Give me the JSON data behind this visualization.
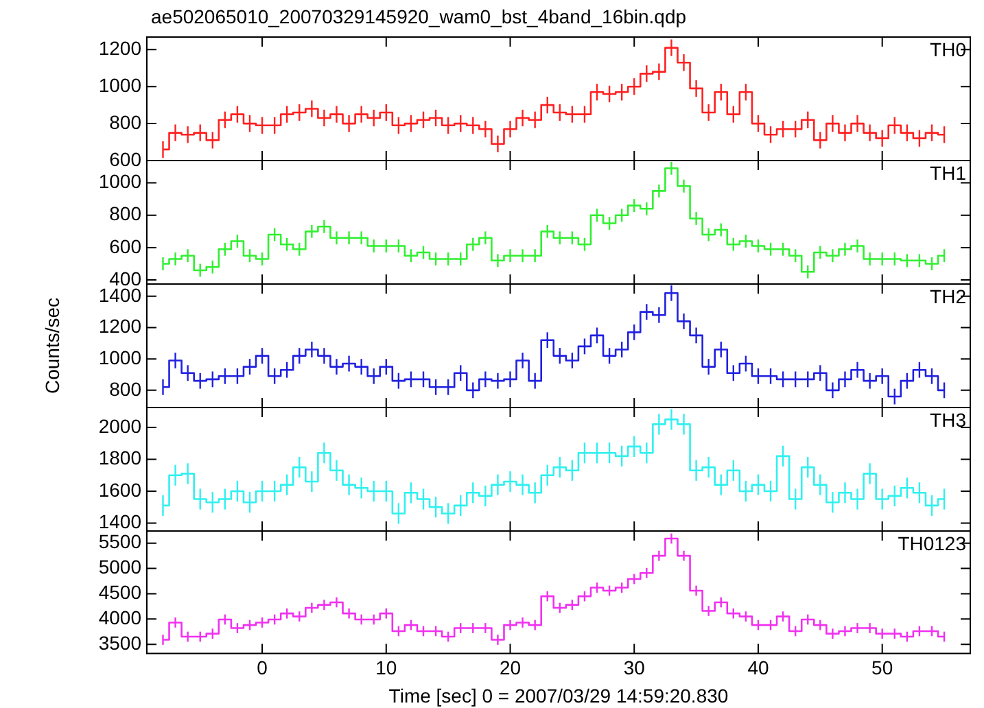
{
  "chart_data": [
    {
      "type": "step",
      "title": "ae502065010_20070329145920_wam0_bst_4band_16bin.qdp",
      "marker": "none",
      "legend": false,
      "tick_labels": "y",
      "xlim": [
        -9.3,
        57.1
      ],
      "xticks": [
        0,
        10,
        20,
        30,
        40,
        50
      ],
      "ylim": [
        600,
        1268
      ],
      "yticks": [
        600,
        800,
        1000,
        1200
      ],
      "x": [
        -8,
        -7,
        -6,
        -5,
        -4,
        -3,
        -2,
        -1,
        0,
        1,
        2,
        3,
        4,
        5,
        6,
        7,
        8,
        9,
        10,
        11,
        12,
        13,
        14,
        15,
        16,
        17,
        18,
        19,
        20,
        21,
        22,
        23,
        24,
        25,
        26,
        27,
        28,
        29,
        30,
        31,
        32,
        33,
        34,
        35,
        36,
        37,
        38,
        39,
        40,
        41,
        42,
        43,
        44,
        45,
        46,
        47,
        48,
        49,
        50,
        51,
        52,
        53,
        54,
        55
      ],
      "series": [
        {
          "name": "TH0",
          "color": "#ff2020",
          "values": [
            660,
            750,
            740,
            750,
            710,
            820,
            850,
            800,
            790,
            790,
            850,
            860,
            880,
            830,
            850,
            800,
            850,
            830,
            860,
            790,
            800,
            820,
            830,
            790,
            800,
            790,
            770,
            690,
            770,
            830,
            820,
            900,
            860,
            850,
            850,
            970,
            960,
            970,
            1000,
            1070,
            1080,
            1210,
            1130,
            990,
            860,
            970,
            850,
            970,
            800,
            740,
            770,
            770,
            820,
            710,
            800,
            750,
            800,
            750,
            720,
            790,
            750,
            720,
            750,
            740
          ],
          "errors": [
            45,
            45,
            45,
            45,
            45,
            45,
            45,
            45,
            45,
            45,
            45,
            45,
            45,
            45,
            45,
            45,
            45,
            45,
            45,
            45,
            45,
            45,
            45,
            45,
            45,
            45,
            45,
            45,
            45,
            45,
            45,
            45,
            45,
            45,
            45,
            45,
            45,
            45,
            45,
            45,
            45,
            45,
            45,
            45,
            45,
            45,
            45,
            45,
            45,
            45,
            45,
            45,
            45,
            45,
            45,
            45,
            45,
            45,
            45,
            45,
            45,
            45,
            45,
            45
          ]
        }
      ]
    },
    {
      "type": "step",
      "marker": "none",
      "legend": false,
      "tick_labels": "y",
      "xlim": [
        -9.3,
        57.1
      ],
      "xticks": [
        0,
        10,
        20,
        30,
        40,
        50
      ],
      "ylim": [
        375,
        1138
      ],
      "yticks": [
        400,
        600,
        800,
        1000
      ],
      "x": [
        -8,
        -7,
        -6,
        -5,
        -4,
        -3,
        -2,
        -1,
        0,
        1,
        2,
        3,
        4,
        5,
        6,
        7,
        8,
        9,
        10,
        11,
        12,
        13,
        14,
        15,
        16,
        17,
        18,
        19,
        20,
        21,
        22,
        23,
        24,
        25,
        26,
        27,
        28,
        29,
        30,
        31,
        32,
        33,
        34,
        35,
        36,
        37,
        38,
        39,
        40,
        41,
        42,
        43,
        44,
        45,
        46,
        47,
        48,
        49,
        50,
        51,
        52,
        53,
        54,
        55
      ],
      "series": [
        {
          "name": "TH1",
          "color": "#30f030",
          "values": [
            500,
            530,
            550,
            460,
            480,
            590,
            640,
            550,
            530,
            680,
            620,
            590,
            700,
            730,
            660,
            660,
            660,
            610,
            610,
            610,
            550,
            570,
            530,
            530,
            530,
            620,
            660,
            520,
            550,
            550,
            550,
            700,
            660,
            660,
            620,
            800,
            750,
            800,
            860,
            840,
            950,
            1090,
            980,
            780,
            680,
            710,
            620,
            640,
            610,
            590,
            590,
            550,
            450,
            570,
            550,
            590,
            610,
            530,
            530,
            530,
            520,
            520,
            500,
            550
          ],
          "errors": [
            40,
            40,
            40,
            40,
            40,
            40,
            40,
            40,
            40,
            40,
            40,
            40,
            40,
            40,
            40,
            40,
            40,
            40,
            40,
            40,
            40,
            40,
            40,
            40,
            40,
            40,
            40,
            40,
            40,
            40,
            40,
            40,
            40,
            40,
            40,
            40,
            40,
            40,
            40,
            40,
            40,
            40,
            40,
            40,
            40,
            40,
            40,
            40,
            40,
            40,
            40,
            40,
            40,
            40,
            40,
            40,
            40,
            40,
            40,
            40,
            40,
            40,
            40,
            40
          ]
        }
      ]
    },
    {
      "type": "step",
      "ylabel": "Counts/sec",
      "marker": "none",
      "legend": false,
      "tick_labels": "y",
      "xlim": [
        -9.3,
        57.1
      ],
      "xticks": [
        0,
        10,
        20,
        30,
        40,
        50
      ],
      "ylim": [
        690,
        1478
      ],
      "yticks": [
        800,
        1000,
        1200,
        1400
      ],
      "x": [
        -8,
        -7,
        -6,
        -5,
        -4,
        -3,
        -2,
        -1,
        0,
        1,
        2,
        3,
        4,
        5,
        6,
        7,
        8,
        9,
        10,
        11,
        12,
        13,
        14,
        15,
        16,
        17,
        18,
        19,
        20,
        21,
        22,
        23,
        24,
        25,
        26,
        27,
        28,
        29,
        30,
        31,
        32,
        33,
        34,
        35,
        36,
        37,
        38,
        39,
        40,
        41,
        42,
        43,
        44,
        45,
        46,
        47,
        48,
        49,
        50,
        51,
        52,
        53,
        54,
        55
      ],
      "series": [
        {
          "name": "TH2",
          "color": "#2020e0",
          "values": [
            820,
            990,
            910,
            860,
            870,
            890,
            890,
            950,
            1020,
            890,
            930,
            1020,
            1060,
            1020,
            950,
            970,
            950,
            890,
            950,
            860,
            870,
            870,
            820,
            820,
            910,
            800,
            870,
            860,
            870,
            990,
            860,
            1120,
            1020,
            990,
            1080,
            1150,
            1020,
            1060,
            1170,
            1300,
            1280,
            1420,
            1240,
            1150,
            950,
            1060,
            910,
            970,
            890,
            890,
            870,
            870,
            870,
            910,
            800,
            870,
            930,
            860,
            890,
            760,
            860,
            930,
            890,
            800
          ],
          "errors": [
            50,
            50,
            50,
            50,
            50,
            50,
            50,
            50,
            50,
            50,
            50,
            50,
            50,
            50,
            50,
            50,
            50,
            50,
            50,
            50,
            50,
            50,
            50,
            50,
            50,
            50,
            50,
            50,
            50,
            50,
            50,
            50,
            50,
            50,
            50,
            50,
            50,
            50,
            50,
            50,
            50,
            50,
            50,
            50,
            50,
            50,
            50,
            50,
            50,
            50,
            50,
            50,
            50,
            50,
            50,
            50,
            50,
            50,
            50,
            50,
            50,
            50,
            50,
            50
          ]
        }
      ]
    },
    {
      "type": "step",
      "marker": "none",
      "legend": false,
      "tick_labels": "y",
      "xlim": [
        -9.3,
        57.1
      ],
      "xticks": [
        0,
        10,
        20,
        30,
        40,
        50
      ],
      "ylim": [
        1350,
        2125
      ],
      "yticks": [
        1400,
        1600,
        1800,
        2000
      ],
      "x": [
        -8,
        -7,
        -6,
        -5,
        -4,
        -3,
        -2,
        -1,
        0,
        1,
        2,
        3,
        4,
        5,
        6,
        7,
        8,
        9,
        10,
        11,
        12,
        13,
        14,
        15,
        16,
        17,
        18,
        19,
        20,
        21,
        22,
        23,
        24,
        25,
        26,
        27,
        28,
        29,
        30,
        31,
        32,
        33,
        34,
        35,
        36,
        37,
        38,
        39,
        40,
        41,
        42,
        43,
        44,
        45,
        46,
        47,
        48,
        49,
        50,
        51,
        52,
        53,
        54,
        55
      ],
      "series": [
        {
          "name": "TH3",
          "color": "#30f0f0",
          "values": [
            1510,
            1700,
            1710,
            1550,
            1530,
            1550,
            1600,
            1530,
            1600,
            1600,
            1640,
            1750,
            1660,
            1840,
            1730,
            1640,
            1620,
            1600,
            1600,
            1460,
            1590,
            1550,
            1500,
            1460,
            1510,
            1590,
            1570,
            1640,
            1660,
            1640,
            1590,
            1700,
            1750,
            1730,
            1840,
            1840,
            1840,
            1820,
            1880,
            1840,
            2020,
            2050,
            2020,
            1730,
            1750,
            1640,
            1730,
            1600,
            1640,
            1600,
            1820,
            1550,
            1750,
            1640,
            1530,
            1590,
            1550,
            1710,
            1550,
            1570,
            1620,
            1590,
            1510,
            1550
          ],
          "errors": [
            65,
            65,
            65,
            65,
            65,
            65,
            65,
            65,
            65,
            65,
            65,
            65,
            65,
            65,
            65,
            65,
            65,
            65,
            65,
            65,
            65,
            65,
            65,
            65,
            65,
            65,
            65,
            65,
            65,
            65,
            65,
            65,
            65,
            65,
            65,
            65,
            65,
            65,
            65,
            65,
            65,
            65,
            65,
            65,
            65,
            65,
            65,
            65,
            65,
            65,
            65,
            65,
            65,
            65,
            65,
            65,
            65,
            65,
            65,
            65,
            65,
            65,
            65,
            65
          ]
        }
      ]
    },
    {
      "type": "step",
      "xlabel": "Time [sec] 0 = 2007/03/29 14:59:20.830",
      "marker": "none",
      "legend": false,
      "xlim": [
        -9.3,
        57.1
      ],
      "xticks": [
        0,
        10,
        20,
        30,
        40,
        50
      ],
      "ylim": [
        3320,
        5740
      ],
      "yticks": [
        3500,
        4000,
        4500,
        5000,
        5500
      ],
      "x": [
        -8,
        -7,
        -6,
        -5,
        -4,
        -3,
        -2,
        -1,
        0,
        1,
        2,
        3,
        4,
        5,
        6,
        7,
        8,
        9,
        10,
        11,
        12,
        13,
        14,
        15,
        16,
        17,
        18,
        19,
        20,
        21,
        22,
        23,
        24,
        25,
        26,
        27,
        28,
        29,
        30,
        31,
        32,
        33,
        34,
        35,
        36,
        37,
        38,
        39,
        40,
        41,
        42,
        43,
        44,
        45,
        46,
        47,
        48,
        49,
        50,
        51,
        52,
        53,
        54,
        55
      ],
      "series": [
        {
          "name": "TH0123",
          "color": "#f030f0",
          "values": [
            3590,
            3930,
            3650,
            3650,
            3710,
            3990,
            3820,
            3880,
            3930,
            3990,
            4110,
            4050,
            4220,
            4280,
            4330,
            4110,
            3990,
            3990,
            4110,
            3760,
            3880,
            3760,
            3760,
            3650,
            3820,
            3820,
            3820,
            3590,
            3880,
            3930,
            3880,
            4450,
            4220,
            4280,
            4450,
            4620,
            4560,
            4620,
            4790,
            4910,
            5250,
            5590,
            5250,
            4560,
            4160,
            4330,
            4110,
            4050,
            3880,
            3880,
            4050,
            3760,
            3990,
            3880,
            3710,
            3760,
            3820,
            3820,
            3710,
            3710,
            3650,
            3760,
            3760,
            3650
          ],
          "errors": [
            100,
            100,
            100,
            100,
            100,
            100,
            100,
            100,
            100,
            100,
            100,
            100,
            100,
            100,
            100,
            100,
            100,
            100,
            100,
            100,
            100,
            100,
            100,
            100,
            100,
            100,
            100,
            100,
            100,
            100,
            100,
            100,
            100,
            100,
            100,
            100,
            100,
            100,
            100,
            100,
            100,
            100,
            100,
            100,
            100,
            100,
            100,
            100,
            100,
            100,
            100,
            100,
            100,
            100,
            100,
            100,
            100,
            100,
            100,
            100,
            100,
            100,
            100,
            100
          ]
        }
      ]
    }
  ]
}
